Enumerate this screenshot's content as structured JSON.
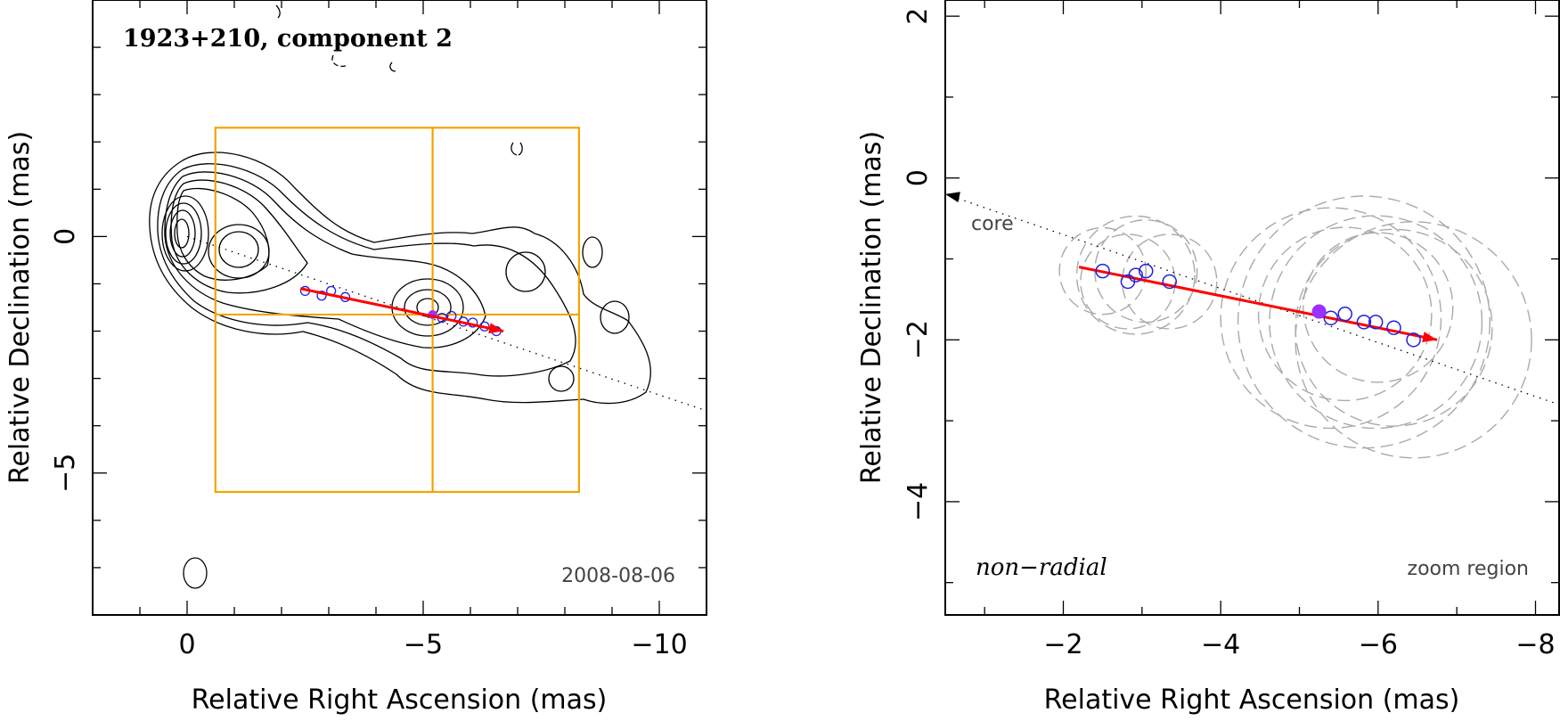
{
  "chart_data": [
    {
      "type": "contour",
      "title": "1923+210, component 2",
      "xlabel": "Relative Right Ascension (mas)",
      "ylabel": "Relative Declination (mas)",
      "xlim": [
        2,
        -11
      ],
      "ylim": [
        -8,
        5
      ],
      "xticks": [
        0,
        -5,
        -10
      ],
      "xtick_labels": [
        "0",
        "−5",
        "−10"
      ],
      "yticks": [
        0,
        -5
      ],
      "ytick_labels": [
        "0",
        "−5"
      ],
      "epoch": "2008-08-06",
      "zoom_box": {
        "ra": [
          -0.6,
          -8.3
        ],
        "dec": [
          2.3,
          -5.4
        ],
        "cross_ra": -5.2,
        "cross_dec": -1.65
      },
      "trajectory": [
        {
          "ra": -2.4,
          "dec": -1.1
        },
        {
          "ra": -6.7,
          "dec": -2.0
        }
      ],
      "track_line": [
        {
          "ra": 0,
          "dec": 0
        },
        {
          "ra": -10.9,
          "dec": -3.65
        }
      ],
      "components": [
        {
          "ra": -2.5,
          "dec": -1.15
        },
        {
          "ra": -2.85,
          "dec": -1.25
        },
        {
          "ra": -3.05,
          "dec": -1.15
        },
        {
          "ra": -3.35,
          "dec": -1.28
        },
        {
          "ra": -5.4,
          "dec": -1.72
        },
        {
          "ra": -5.6,
          "dec": -1.68
        },
        {
          "ra": -5.85,
          "dec": -1.8
        },
        {
          "ra": -6.05,
          "dec": -1.82
        },
        {
          "ra": -6.3,
          "dec": -1.9
        },
        {
          "ra": -6.55,
          "dec": -2.0
        }
      ],
      "current": {
        "ra": -5.2,
        "dec": -1.65
      }
    },
    {
      "type": "scatter",
      "xlabel": "Relative Right Ascension (mas)",
      "ylabel": "Relative Declination (mas)",
      "xlim": [
        -0.5,
        -8.3
      ],
      "ylim": [
        -5.4,
        2.2
      ],
      "xticks": [
        -2,
        -4,
        -6,
        -8
      ],
      "xtick_labels": [
        "−2",
        "−4",
        "−6",
        "−8"
      ],
      "yticks": [
        2,
        0,
        -2,
        -4
      ],
      "ytick_labels": [
        "2",
        "0",
        "−2",
        "−4"
      ],
      "core_label": "core",
      "motion_label": "non−radial",
      "region_label": "zoom region",
      "core_arrow": {
        "from_ra": -1.5,
        "from_dec": -0.4,
        "to_ra": -0.5,
        "to_dec": -0.2
      },
      "track_line": [
        {
          "ra": -0.5,
          "dec": -0.2
        },
        {
          "ra": -8.3,
          "dec": -2.8
        }
      ],
      "trajectory": [
        {
          "ra": -2.2,
          "dec": -1.1
        },
        {
          "ra": -6.75,
          "dec": -2.0
        }
      ],
      "components": [
        {
          "ra": -2.5,
          "dec": -1.15
        },
        {
          "ra": -2.82,
          "dec": -1.28
        },
        {
          "ra": -2.92,
          "dec": -1.2
        },
        {
          "ra": -3.05,
          "dec": -1.15
        },
        {
          "ra": -3.35,
          "dec": -1.28
        },
        {
          "ra": -5.4,
          "dec": -1.73
        },
        {
          "ra": -5.58,
          "dec": -1.68
        },
        {
          "ra": -5.82,
          "dec": -1.78
        },
        {
          "ra": -5.97,
          "dec": -1.78
        },
        {
          "ra": -6.2,
          "dec": -1.85
        },
        {
          "ra": -6.45,
          "dec": -2.0
        }
      ],
      "current": {
        "ra": -5.25,
        "dec": -1.65
      },
      "fwhm_circles": [
        {
          "ra": -2.5,
          "dec": -1.15,
          "r": 0.55
        },
        {
          "ra": -2.82,
          "dec": -1.28,
          "r": 0.6
        },
        {
          "ra": -2.92,
          "dec": -1.2,
          "r": 0.75
        },
        {
          "ra": -3.05,
          "dec": -1.15,
          "r": 0.65
        },
        {
          "ra": -3.35,
          "dec": -1.28,
          "r": 0.6
        },
        {
          "ra": -5.4,
          "dec": -1.73,
          "r": 1.4
        },
        {
          "ra": -5.58,
          "dec": -1.68,
          "r": 1.1
        },
        {
          "ra": -5.82,
          "dec": -1.78,
          "r": 1.6
        },
        {
          "ra": -5.97,
          "dec": -1.78,
          "r": 1.35
        },
        {
          "ra": -6.2,
          "dec": -1.85,
          "r": 1.25
        },
        {
          "ra": -6.45,
          "dec": -2.0,
          "r": 1.5
        },
        {
          "ra": -6.0,
          "dec": -1.6,
          "r": 0.95
        }
      ]
    }
  ]
}
